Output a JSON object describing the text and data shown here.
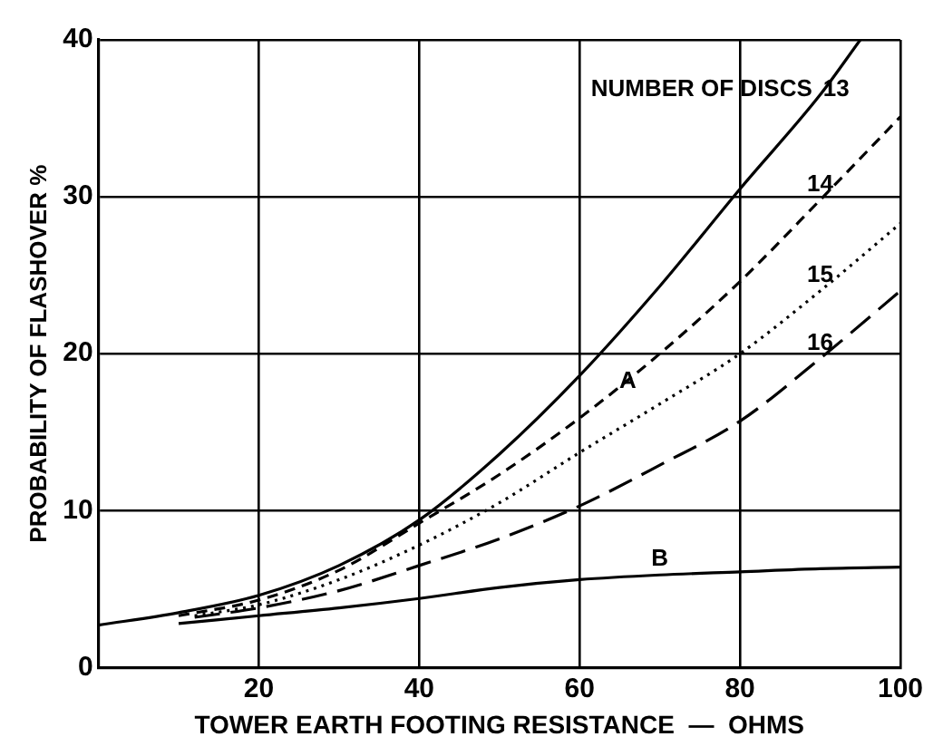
{
  "chart_data": {
    "type": "line",
    "xlabel": "TOWER EARTH FOOTING RESISTANCE  —  OHMS",
    "ylabel": "PROBABILITY OF FLASHOVER %",
    "legend_title": "NUMBER OF DISCS",
    "series": [
      {
        "name": "13",
        "color": "#000000",
        "line_style": "solid",
        "x": [
          0,
          10,
          20,
          30,
          40,
          50,
          60,
          70,
          80,
          90,
          95
        ],
        "values": [
          2.7,
          3.5,
          4.6,
          6.5,
          9.4,
          13.6,
          18.6,
          24.3,
          30.5,
          36.5,
          40
        ]
      },
      {
        "name": "14",
        "color": "#000000",
        "line_style": "dashed",
        "x": [
          10,
          20,
          30,
          40,
          50,
          60,
          70,
          80,
          90,
          100
        ],
        "values": [
          3.3,
          4.3,
          6.2,
          9.2,
          12.3,
          15.9,
          20.0,
          24.6,
          29.8,
          35.1
        ]
      },
      {
        "name": "15",
        "color": "#000000",
        "line_style": "dotted",
        "x": [
          12,
          20,
          30,
          40,
          50,
          60,
          70,
          80,
          90,
          100
        ],
        "values": [
          3.3,
          4.0,
          5.6,
          7.8,
          10.5,
          13.7,
          16.8,
          20.0,
          24.0,
          28.3
        ]
      },
      {
        "name": "16",
        "color": "#000000",
        "line_style": "dashed",
        "x": [
          12,
          20,
          30,
          40,
          50,
          60,
          70,
          80,
          90,
          100
        ],
        "values": [
          3.2,
          3.8,
          4.9,
          6.5,
          8.2,
          10.3,
          12.9,
          15.7,
          19.7,
          24.0
        ]
      },
      {
        "name": "B",
        "color": "#000000",
        "line_style": "solid",
        "x": [
          10,
          20,
          30,
          40,
          50,
          60,
          70,
          80,
          90,
          100
        ],
        "values": [
          2.8,
          3.3,
          3.8,
          4.4,
          5.1,
          5.6,
          5.9,
          6.1,
          6.3,
          6.4
        ]
      }
    ],
    "annotations": [
      {
        "text": "A",
        "x": 66,
        "y": 17.5
      }
    ],
    "xlim": [
      0,
      100
    ],
    "ylim": [
      0,
      40
    ],
    "xticks": [
      {
        "value": 0,
        "label": null
      },
      20,
      40,
      60,
      80,
      100
    ],
    "yticks": [
      0,
      10,
      20,
      30,
      40
    ],
    "grid": true,
    "legend": false,
    "marker": "none"
  }
}
